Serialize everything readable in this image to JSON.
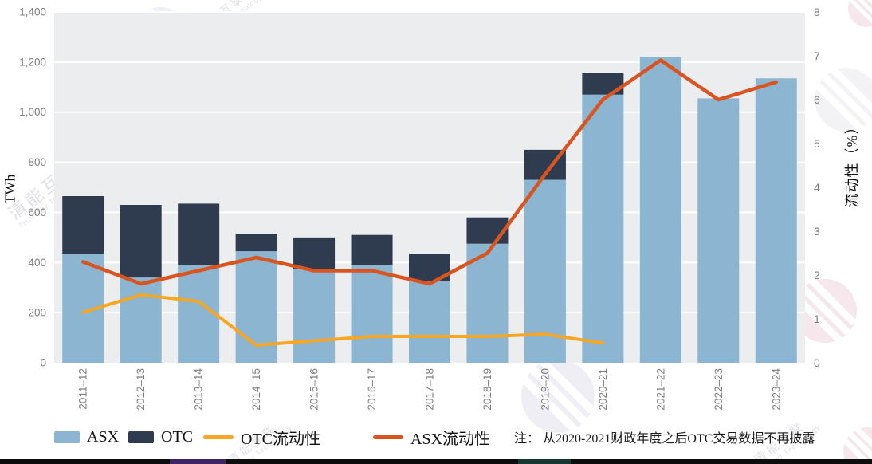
{
  "chart_data": {
    "type": "bar",
    "subtype": "stacked-bars-with-two-lines",
    "categories": [
      "2011–12",
      "2012–13",
      "2013–14",
      "2014–15",
      "2015–16",
      "2016–17",
      "2017–18",
      "2018–19",
      "2019–20",
      "2020–21",
      "2021–22",
      "2022–23",
      "2023–24"
    ],
    "series": [
      {
        "name": "ASX",
        "kind": "bar",
        "axis": "left",
        "values": [
          435,
          340,
          390,
          445,
          375,
          390,
          325,
          475,
          730,
          1070,
          1220,
          1055,
          1135
        ]
      },
      {
        "name": "OTC",
        "kind": "bar",
        "axis": "left",
        "values": [
          230,
          290,
          245,
          70,
          125,
          120,
          110,
          105,
          120,
          85,
          null,
          null,
          null
        ]
      },
      {
        "name": "OTC流动性",
        "kind": "line",
        "axis": "right",
        "values": [
          1.15,
          1.55,
          1.4,
          0.4,
          0.5,
          0.6,
          0.6,
          0.6,
          0.65,
          0.45,
          null,
          null,
          null
        ]
      },
      {
        "name": "ASX流动性",
        "kind": "line",
        "axis": "right",
        "values": [
          2.3,
          1.8,
          2.1,
          2.4,
          2.1,
          2.1,
          1.8,
          2.5,
          4.3,
          6.0,
          6.9,
          6.0,
          6.4
        ]
      }
    ],
    "ylabel_left": "TWh",
    "ylabel_right": "流动性（%）",
    "y_left": {
      "min": 0,
      "max": 1400,
      "step": 200,
      "tick_labels": [
        "0",
        "200",
        "400",
        "600",
        "800",
        "1,000",
        "1,200",
        "1,400"
      ]
    },
    "y_right": {
      "min": 0,
      "max": 8,
      "step": 1,
      "tick_labels": [
        "0",
        "1",
        "2",
        "3",
        "4",
        "5",
        "6",
        "7",
        "8"
      ]
    },
    "grid": "horizontal white gridlines on light-gray panel",
    "legend_position": "bottom"
  },
  "legend": {
    "items": [
      {
        "label": "ASX",
        "swatch": "rect",
        "color": "#8cb5d1"
      },
      {
        "label": "OTC",
        "swatch": "rect",
        "color": "#2f3b4e"
      },
      {
        "label": "OTC流动性",
        "swatch": "line",
        "color": "#f6a623"
      },
      {
        "label": "ASX流动性",
        "swatch": "line",
        "color": "#d9541f"
      }
    ]
  },
  "note": {
    "text": "注： 从2020-2021财政年度之后OTC交易数据不再披露"
  },
  "colors": {
    "asx_bar": "#8cb5d1",
    "otc_bar": "#2f3b4e",
    "otc_liquidity_line": "#f6a623",
    "asx_liquidity_line": "#d9541f",
    "plot_background": "#ecedef",
    "gridline": "#ffffff",
    "tick_text": "#7e7e7e",
    "bottom_strip": "#0d0d0d"
  },
  "watermark": {
    "cn": "清能互联",
    "en": "Tsintergy Technology"
  }
}
